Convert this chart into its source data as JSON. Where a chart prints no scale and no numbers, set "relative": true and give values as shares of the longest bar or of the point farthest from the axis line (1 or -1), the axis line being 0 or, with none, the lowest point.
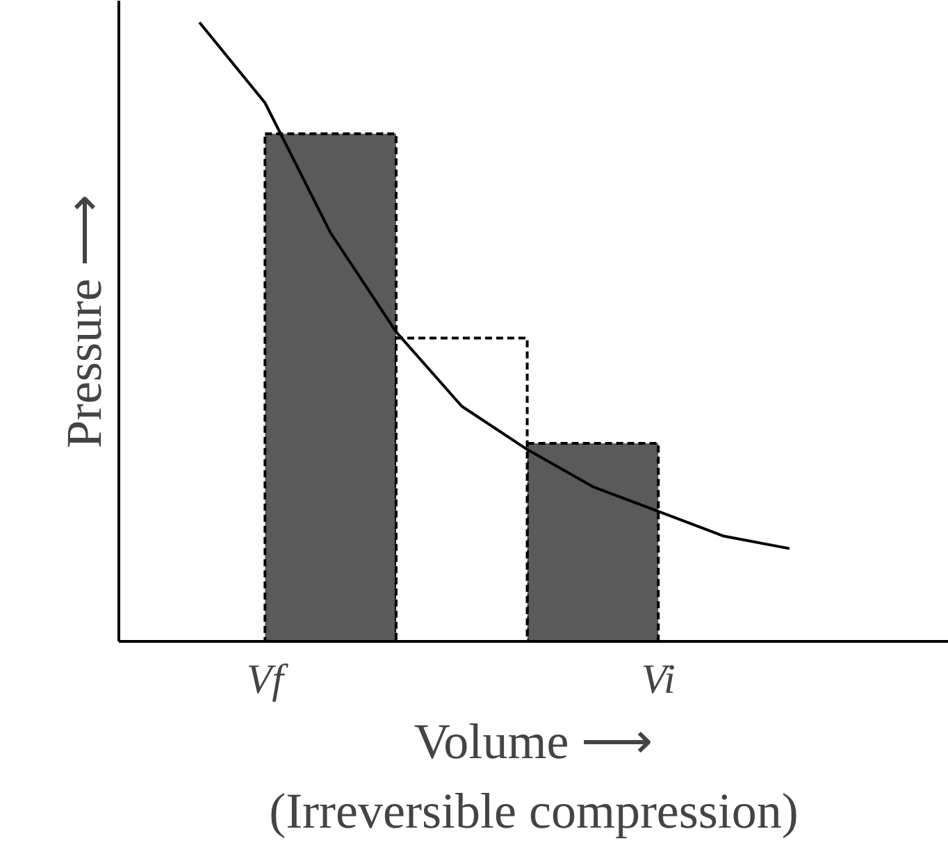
{
  "chart_data": {
    "type": "bar",
    "relative": true,
    "xlabel": "Volume ⟶",
    "ylabel": "Pressure ⟶",
    "annotations": [
      "(Irreversible compression)"
    ],
    "categories": [
      null,
      "Vf",
      null,
      null,
      null,
      null,
      null,
      "Vi",
      null,
      null
    ],
    "tick_labels": "x",
    "grid": false,
    "line_style": "dashed",
    "series": [
      {
        "color": "#5a5a5a",
        "values": [
          null,
          null,
          0.82,
          null,
          null,
          null,
          0.32,
          null,
          null,
          null
        ]
      },
      {
        "color": "#ffffff",
        "values": [
          null,
          null,
          null,
          null,
          0.49,
          null,
          null,
          null,
          null,
          null
        ]
      },
      {
        "type": "line",
        "color": "#000000",
        "line_style": "solid",
        "values": [
          1.0,
          0.87,
          0.66,
          0.5,
          0.38,
          0.31,
          0.25,
          0.21,
          0.17,
          0.15
        ]
      }
    ]
  }
}
